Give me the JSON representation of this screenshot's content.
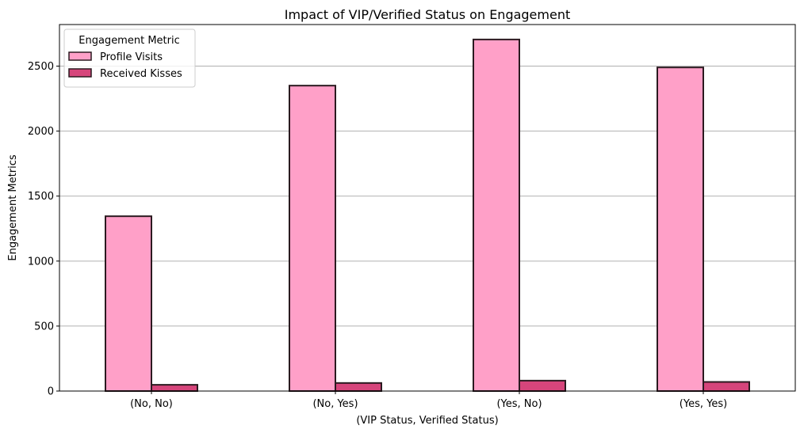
{
  "chart_data": {
    "type": "bar",
    "title": "Impact of VIP/Verified Status on Engagement",
    "xlabel": "(VIP Status, Verified Status)",
    "ylabel": "Engagement Metrics",
    "categories": [
      "(No, No)",
      "(No, Yes)",
      "(Yes, No)",
      "(Yes, Yes)"
    ],
    "ylim": [
      0,
      2820
    ],
    "yticks": [
      0,
      500,
      1000,
      1500,
      2000,
      2500
    ],
    "grid": "y",
    "legend": {
      "title": "Engagement Metric",
      "placement": "top-left"
    },
    "series": [
      {
        "name": "Profile Visits",
        "color": "#ffa0c8",
        "values": [
          1345,
          2350,
          2705,
          2490
        ]
      },
      {
        "name": "Received Kisses",
        "color": "#d6457b",
        "values": [
          48,
          62,
          80,
          70
        ]
      }
    ],
    "edge_color": "#2b1a20"
  }
}
